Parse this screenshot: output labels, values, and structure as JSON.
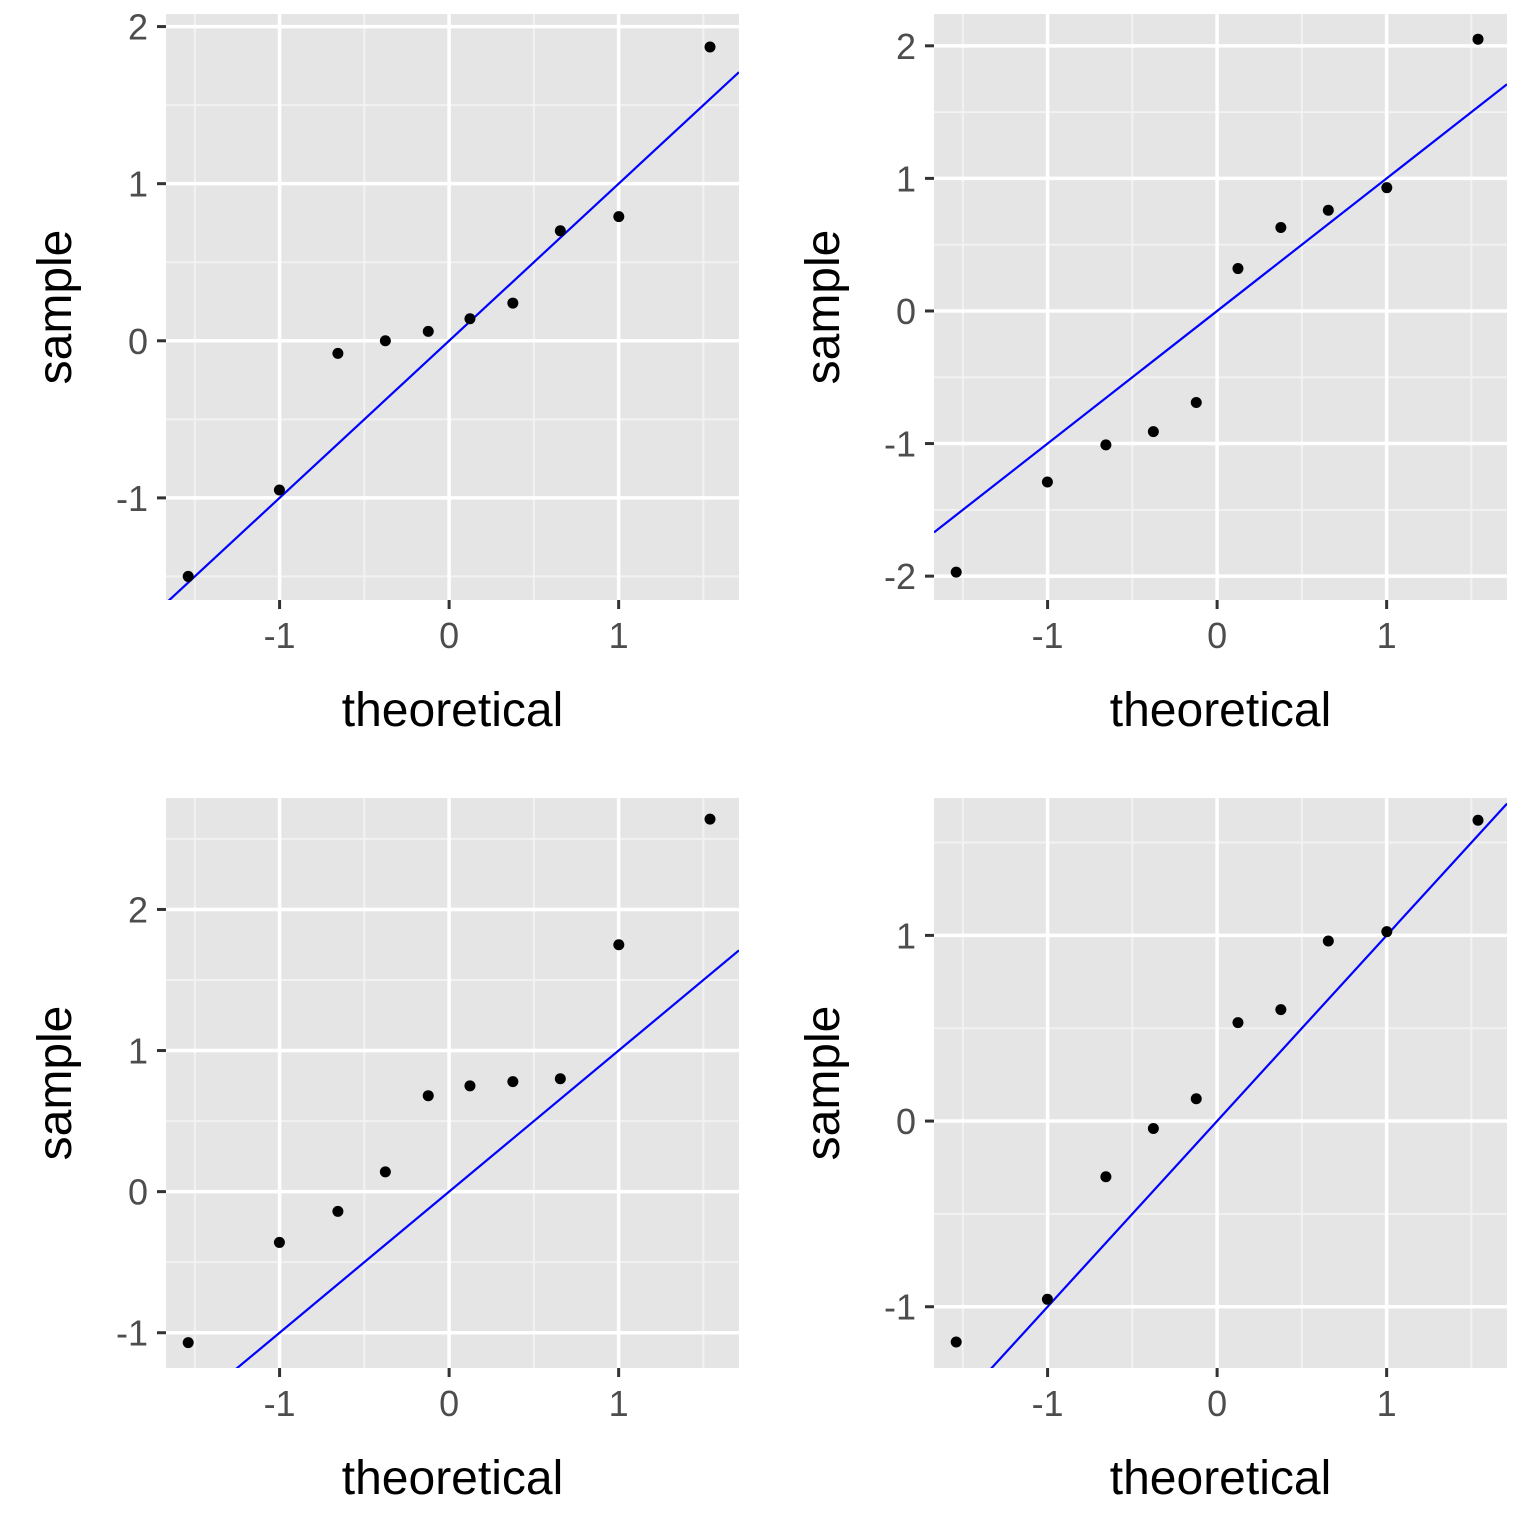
{
  "chart_data": [
    {
      "type": "scatter",
      "xlabel": "theoretical",
      "ylabel": "sample",
      "xlim": [
        -1.67,
        1.71
      ],
      "ylim": [
        -1.65,
        2.08
      ],
      "xticks": [
        -1,
        0,
        1
      ],
      "yticks": [
        -1,
        0,
        1,
        2
      ],
      "x": [
        -1.539,
        -1.001,
        -0.656,
        -0.376,
        -0.123,
        0.123,
        0.376,
        0.656,
        1.001,
        1.539
      ],
      "y": [
        -1.5,
        -0.95,
        -0.08,
        0.0,
        0.06,
        0.14,
        0.24,
        0.7,
        0.79,
        1.87
      ],
      "reference_line": {
        "intercept": 0,
        "slope": 1
      },
      "grid": true
    },
    {
      "type": "scatter",
      "xlabel": "theoretical",
      "ylabel": "sample",
      "xlim": [
        -1.67,
        1.71
      ],
      "ylim": [
        -2.18,
        2.24
      ],
      "xticks": [
        -1,
        0,
        1
      ],
      "yticks": [
        -2,
        -1,
        0,
        1,
        2
      ],
      "x": [
        -1.539,
        -1.001,
        -0.656,
        -0.376,
        -0.123,
        0.123,
        0.376,
        0.656,
        1.001,
        1.539
      ],
      "y": [
        -1.97,
        -1.29,
        -1.01,
        -0.91,
        -0.69,
        0.32,
        0.63,
        0.76,
        0.93,
        2.05
      ],
      "reference_line": {
        "intercept": 0,
        "slope": 1
      },
      "grid": true
    },
    {
      "type": "scatter",
      "xlabel": "theoretical",
      "ylabel": "sample",
      "xlim": [
        -1.67,
        1.71
      ],
      "ylim": [
        -1.25,
        2.79
      ],
      "xticks": [
        -1,
        0,
        1
      ],
      "yticks": [
        -1,
        0,
        1,
        2
      ],
      "x": [
        -1.539,
        -1.001,
        -0.656,
        -0.376,
        -0.123,
        0.123,
        0.376,
        0.656,
        1.001,
        1.539
      ],
      "y": [
        -1.07,
        -0.36,
        -0.14,
        0.14,
        0.68,
        0.75,
        0.78,
        0.8,
        1.75,
        2.64
      ],
      "reference_line": {
        "intercept": 0,
        "slope": 1
      },
      "grid": true
    },
    {
      "type": "scatter",
      "xlabel": "theoretical",
      "ylabel": "sample",
      "xlim": [
        -1.67,
        1.71
      ],
      "ylim": [
        -1.33,
        1.74
      ],
      "xticks": [
        -1,
        0,
        1
      ],
      "yticks": [
        -1,
        0,
        1
      ],
      "x": [
        -1.539,
        -1.001,
        -0.656,
        -0.376,
        -0.123,
        0.123,
        0.376,
        0.656,
        1.001,
        1.539
      ],
      "y": [
        -1.19,
        -0.96,
        -0.3,
        -0.04,
        0.12,
        0.53,
        0.6,
        0.97,
        1.02,
        1.62
      ],
      "reference_line": {
        "intercept": 0,
        "slope": 1
      },
      "grid": true
    }
  ],
  "colors": {
    "panel_background": "#e5e5e5",
    "grid_major": "#ffffff",
    "grid_minor": "#f2f2f2",
    "point": "#000000",
    "reference_line": "#0000ff",
    "tick_text": "#4d4d4d",
    "axis_title": "#000000"
  }
}
